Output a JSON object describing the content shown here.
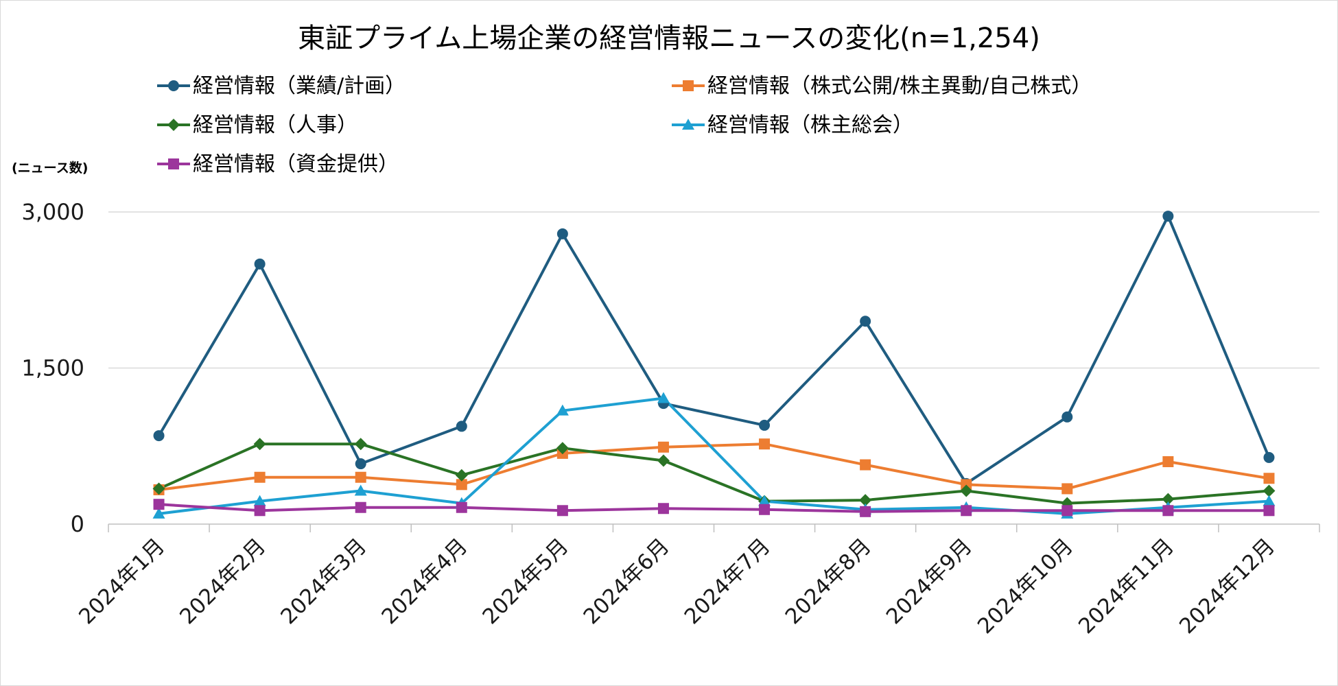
{
  "chart_data": {
    "type": "line",
    "title": "東証プライム上場企業の経営情報ニュースの変化(n=1,254)",
    "ylabel": "(ニュース数)",
    "xlabel": "",
    "ylim": [
      0,
      3000
    ],
    "yticks": [
      "0",
      "1,500",
      "3,000"
    ],
    "ytick_values": [
      0,
      1500,
      3000
    ],
    "grid": true,
    "legend_position": "top",
    "categories": [
      "2024年1月",
      "2024年2月",
      "2024年3月",
      "2024年4月",
      "2024年5月",
      "2024年6月",
      "2024年7月",
      "2024年8月",
      "2024年9月",
      "2024年10月",
      "2024年11月",
      "2024年12月"
    ],
    "series": [
      {
        "name": "経営情報（業績/計画）",
        "color": "#1f5c80",
        "marker": "circle",
        "values": [
          850,
          2500,
          580,
          940,
          2790,
          1160,
          950,
          1950,
          390,
          1030,
          2960,
          640
        ]
      },
      {
        "name": "経営情報（株式公開/株主異動/自己株式）",
        "color": "#ed7d31",
        "marker": "square",
        "values": [
          330,
          450,
          450,
          380,
          680,
          740,
          770,
          570,
          380,
          340,
          600,
          440
        ]
      },
      {
        "name": "経営情報（人事）",
        "color": "#2a7325",
        "marker": "diamond",
        "values": [
          340,
          770,
          770,
          470,
          730,
          610,
          220,
          230,
          320,
          200,
          240,
          320
        ]
      },
      {
        "name": "経営情報（株主総会）",
        "color": "#1ea0d2",
        "marker": "triangle",
        "values": [
          100,
          220,
          320,
          200,
          1090,
          1210,
          220,
          140,
          160,
          100,
          160,
          220
        ]
      },
      {
        "name": "経営情報（資金提供）",
        "color": "#9c359c",
        "marker": "square",
        "values": [
          190,
          130,
          160,
          160,
          130,
          150,
          140,
          120,
          130,
          130,
          130,
          130
        ]
      }
    ]
  }
}
